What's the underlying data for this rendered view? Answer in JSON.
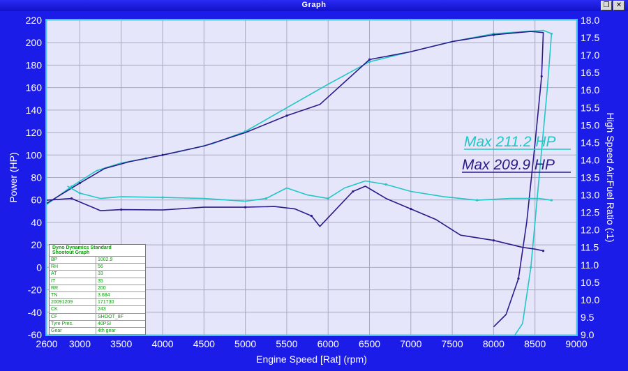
{
  "window": {
    "title": "Graph",
    "restore_icon": "restore-icon",
    "close_icon": "close-icon"
  },
  "colors": {
    "background": "#1c1ce8",
    "plot": "#e6e6fa",
    "run1": "#22c6c6",
    "run2": "#2a1a8a",
    "axis_text": "#ffffff"
  },
  "max_labels": {
    "run1": "Max 211.2 HP",
    "run2": "Max 209.9 HP"
  },
  "info_table": {
    "header": [
      "Dyno Dynamics Standard",
      "Shootout Graph"
    ],
    "rows": [
      [
        "BP",
        "1002.9"
      ],
      [
        "RH",
        "56"
      ],
      [
        "AT",
        "33"
      ],
      [
        "IT",
        "35"
      ],
      [
        "RR",
        "200"
      ],
      [
        "TN",
        "3.684"
      ],
      [
        "20091209",
        "171730"
      ],
      [
        "CK",
        "243"
      ],
      [
        "CF",
        "SHOOT_8F"
      ],
      [
        "Tyre Pres.",
        "40PSI"
      ],
      [
        "Gear",
        "4th gear"
      ]
    ]
  },
  "chart_data": {
    "type": "line",
    "xlabel": "Engine Speed [Rat] (rpm)",
    "ylabel": "Power (HP)",
    "y2label": "High Speed Air:Fuel Ratio (:1)",
    "xlim": [
      2600,
      9000
    ],
    "ylim": [
      -60,
      220
    ],
    "y2lim": [
      9.0,
      18.0
    ],
    "x_ticks": [
      2600,
      3000,
      3500,
      4000,
      4500,
      5000,
      5500,
      6000,
      6500,
      7000,
      7500,
      8000,
      8500,
      9000
    ],
    "y_ticks": [
      -60,
      -40,
      -20,
      0,
      20,
      40,
      60,
      80,
      100,
      120,
      140,
      160,
      180,
      200,
      220
    ],
    "y2_ticks": [
      "9.0",
      "9.5",
      "10.0",
      "10.5",
      "11.0",
      "11.5",
      "12.0",
      "12.5",
      "13.0",
      "13.5",
      "14.0",
      "14.5",
      "15.0",
      "15.5",
      "16.0",
      "16.5",
      "17.0",
      "17.5",
      "18.0"
    ],
    "grid": true,
    "series": [
      {
        "name": "Power",
        "axis": "left",
        "color": "#22c6c6",
        "x": [
          2600,
          2900,
          3200,
          3500,
          3800,
          4200,
          4600,
          5000,
          5500,
          6000,
          6500,
          7000,
          7500,
          8000,
          8400,
          8600,
          8700,
          8650,
          8550,
          8450,
          8350,
          8250
        ],
        "y": [
          56,
          72,
          86,
          93,
          97,
          103,
          110,
          121,
          142,
          163,
          183,
          192,
          201,
          208,
          210,
          211,
          208,
          160,
          80,
          0,
          -50,
          -61
        ]
      },
      {
        "name": "Power",
        "axis": "left",
        "color": "#2a1a8a",
        "x": [
          2600,
          3000,
          3300,
          3600,
          4000,
          4500,
          5000,
          5500,
          5900,
          6200,
          6500,
          7000,
          7500,
          8000,
          8450,
          8600,
          8580,
          8500,
          8400,
          8300,
          8150,
          8000
        ],
        "y": [
          57,
          75,
          88,
          94,
          100,
          108,
          120,
          135,
          145,
          165,
          185,
          192,
          201,
          207,
          210,
          209,
          170,
          110,
          40,
          -10,
          -42,
          -53
        ]
      },
      {
        "name": "A/F",
        "axis": "right",
        "color": "#22c6c6",
        "x": [
          2850,
          3000,
          3250,
          3500,
          4000,
          4500,
          5000,
          5250,
          5500,
          5750,
          6000,
          6200,
          6450,
          6700,
          7000,
          7400,
          7800,
          8200,
          8550,
          8700
        ],
        "y": [
          13.25,
          13.05,
          12.9,
          12.95,
          12.93,
          12.9,
          12.82,
          12.9,
          13.2,
          13.0,
          12.9,
          13.2,
          13.4,
          13.3,
          13.1,
          12.95,
          12.85,
          12.9,
          12.9,
          12.85
        ]
      },
      {
        "name": "A/F",
        "axis": "right",
        "color": "#2a1a8a",
        "x": [
          2600,
          2900,
          3100,
          3250,
          3500,
          4000,
          4500,
          5000,
          5350,
          5600,
          5800,
          5900,
          6100,
          6300,
          6450,
          6700,
          7000,
          7300,
          7600,
          8000,
          8350,
          8500,
          8600
        ],
        "y": [
          12.85,
          12.9,
          12.7,
          12.55,
          12.58,
          12.57,
          12.65,
          12.65,
          12.67,
          12.6,
          12.4,
          12.1,
          12.6,
          13.1,
          13.25,
          12.9,
          12.6,
          12.3,
          11.85,
          11.7,
          11.5,
          11.45,
          11.4
        ]
      }
    ]
  }
}
